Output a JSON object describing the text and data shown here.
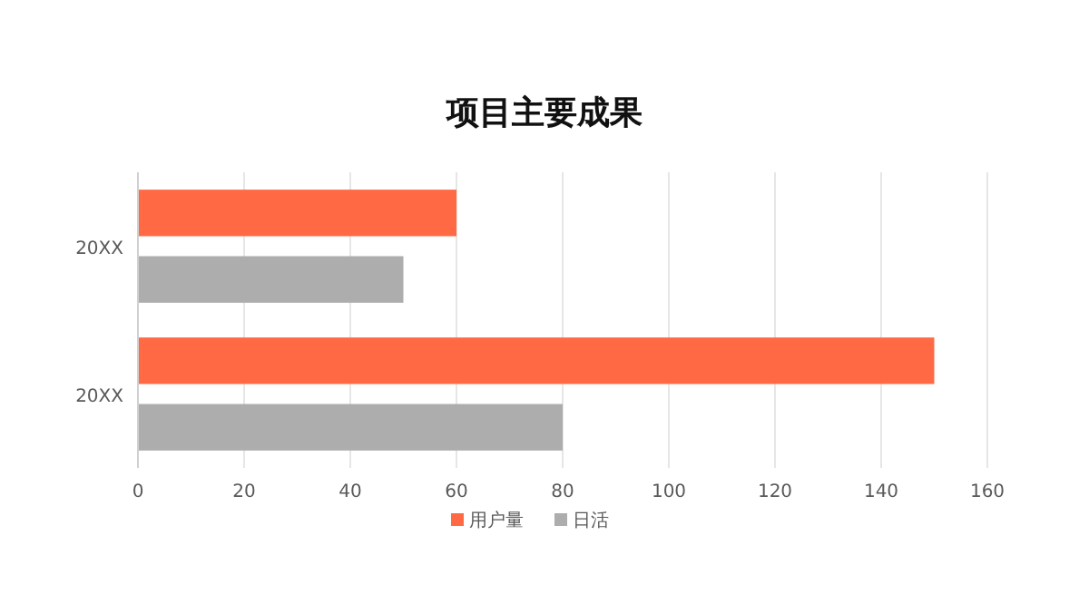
{
  "chart_data": {
    "type": "bar",
    "title": "项目主要成果",
    "orientation": "horizontal",
    "categories": [
      "20XX",
      "20XX"
    ],
    "series": [
      {
        "name": "用户量",
        "color": "#ff6a45",
        "values": [
          60,
          150
        ]
      },
      {
        "name": "日活",
        "color": "#adadad",
        "values": [
          50,
          80
        ]
      }
    ],
    "xlim": [
      0,
      160
    ],
    "xticks": [
      0,
      20,
      40,
      60,
      80,
      100,
      120,
      140,
      160
    ],
    "grid": "x",
    "legend": "bottom"
  }
}
